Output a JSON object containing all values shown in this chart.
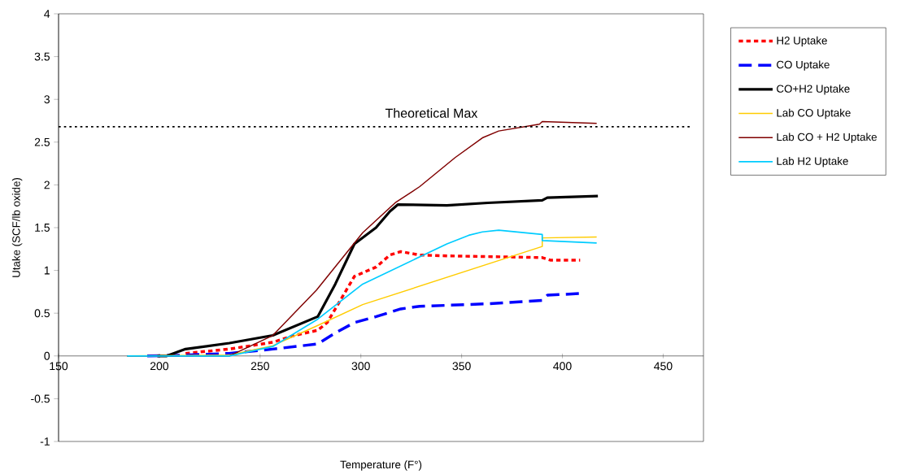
{
  "chart_data": {
    "type": "line",
    "xlabel": "Temperature (F°)",
    "ylabel": "Utake (SCF/lb oxide)",
    "xlim": [
      150,
      470
    ],
    "xticks": [
      150,
      200,
      250,
      300,
      350,
      400,
      450
    ],
    "ylim": [
      -1,
      4
    ],
    "yticks": [
      -1,
      -0.5,
      0,
      0.5,
      1,
      1.5,
      2,
      2.5,
      3,
      3.5,
      4
    ],
    "legend": "right",
    "ref_lines": [
      {
        "axis": "y",
        "value": 2.68,
        "label": "Theoretical Max",
        "color": "#000000",
        "line_style": "dotted"
      }
    ],
    "series": [
      {
        "name": "H2 Uptake",
        "color": "#ff0000",
        "line_style": "dashed",
        "x": [
          213,
          234.7,
          256.3,
          267,
          278.6,
          283.3,
          296.8,
          307.6,
          314.4,
          319.8,
          329.2,
          342.7,
          390,
          394,
          408.8
        ],
        "values": [
          0.03,
          0.08,
          0.16,
          0.24,
          0.3,
          0.39,
          0.93,
          1.04,
          1.18,
          1.22,
          1.18,
          1.17,
          1.15,
          1.12,
          1.12
        ]
      },
      {
        "name": "CO Uptake",
        "color": "#0000ff",
        "line_style": "dashed",
        "x": [
          194,
          213,
          234.7,
          256.3,
          278.6,
          287.4,
          296.8,
          307.6,
          319.8,
          329.2,
          363,
          390,
          392.6,
          408.8
        ],
        "values": [
          0,
          0.01,
          0.03,
          0.08,
          0.14,
          0.27,
          0.39,
          0.46,
          0.55,
          0.58,
          0.61,
          0.65,
          0.71,
          0.73
        ]
      },
      {
        "name": "CO+H2 Uptake",
        "color": "#000000",
        "line_style": "solid",
        "x": [
          199,
          203.7,
          213,
          234.8,
          256.3,
          278.6,
          287.3,
          296.8,
          307.5,
          314.4,
          318.4,
          342.7,
          363,
          390,
          392.5,
          417.6
        ],
        "values": [
          0,
          0,
          0.08,
          0.15,
          0.24,
          0.46,
          0.84,
          1.31,
          1.5,
          1.69,
          1.77,
          1.76,
          1.79,
          1.82,
          1.85,
          1.87
        ]
      },
      {
        "name": "Lab CO Uptake",
        "color": "#ffcc00",
        "line_style": "solid",
        "x": [
          184,
          234.7,
          256.3,
          278,
          300.9,
          390,
          390,
          417
        ],
        "values": [
          0,
          0.01,
          0.12,
          0.35,
          0.6,
          1.28,
          1.38,
          1.39
        ]
      },
      {
        "name": "Lab CO + H2 Uptake",
        "color": "#800000",
        "line_style": "solid",
        "x": [
          184,
          234.7,
          256.3,
          278,
          300.9,
          317,
          329.2,
          346.8,
          360.3,
          368.4,
          388.6,
          390,
          417
        ],
        "values": [
          0,
          0,
          0.24,
          0.77,
          1.44,
          1.79,
          1.98,
          2.32,
          2.55,
          2.63,
          2.71,
          2.74,
          2.72
        ]
      },
      {
        "name": "Lab H2 Uptake",
        "color": "#00ccff",
        "line_style": "solid",
        "x": [
          184,
          234.7,
          256.3,
          278,
          300.9,
          342.7,
          353.5,
          360.3,
          368.4,
          390,
          390,
          417
        ],
        "values": [
          0,
          0,
          0.11,
          0.42,
          0.84,
          1.31,
          1.41,
          1.45,
          1.47,
          1.42,
          1.35,
          1.32
        ]
      }
    ]
  }
}
